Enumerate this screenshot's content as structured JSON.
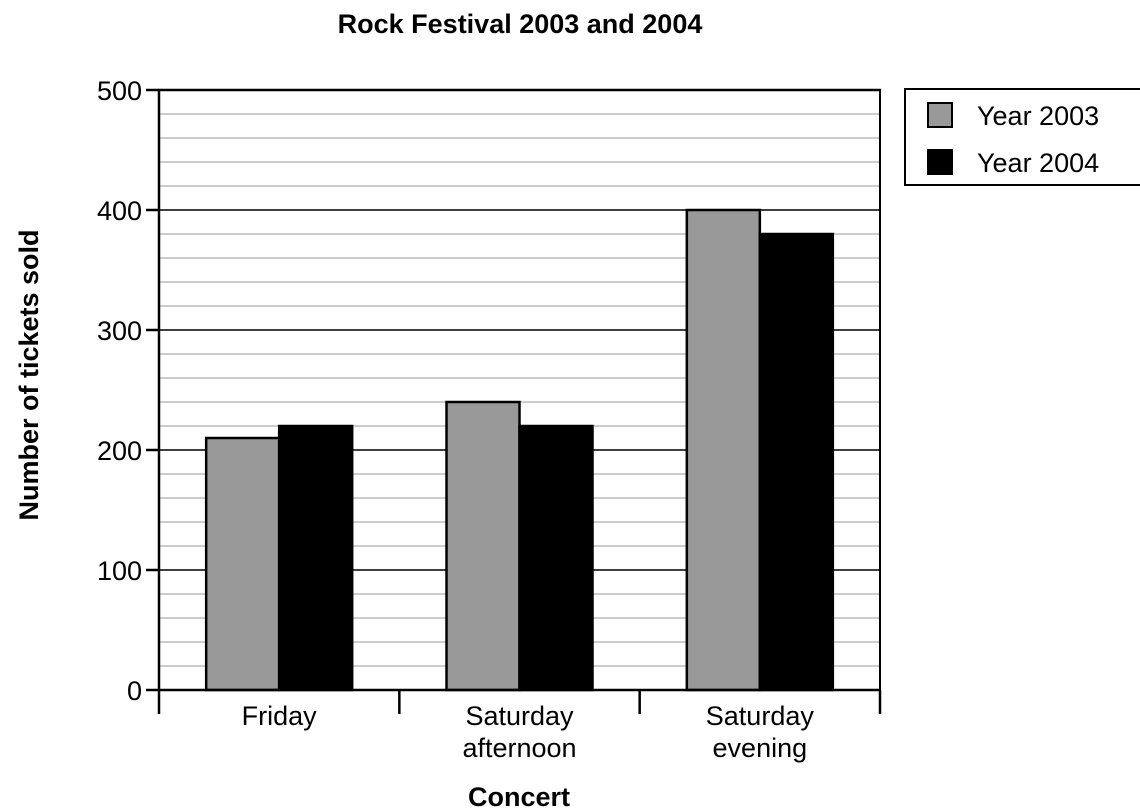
{
  "chart_data": {
    "type": "bar",
    "title": "Rock Festival 2003 and 2004",
    "xlabel": "Concert",
    "ylabel": "Number of tickets sold",
    "categories": [
      [
        "Friday"
      ],
      [
        "Saturday",
        "afternoon"
      ],
      [
        "Saturday",
        "evening"
      ]
    ],
    "series": [
      {
        "name": "Year 2003",
        "values": [
          210,
          240,
          400
        ],
        "color": "#999999"
      },
      {
        "name": "Year 2004",
        "values": [
          220,
          220,
          380
        ],
        "color": "#000000"
      }
    ],
    "ylim": [
      0,
      500
    ],
    "yticks": [
      "0",
      "100",
      "200",
      "300",
      "400",
      "500"
    ],
    "minor_grid_step": 20,
    "grid": true,
    "legend_position": "top-right, outside plot"
  }
}
